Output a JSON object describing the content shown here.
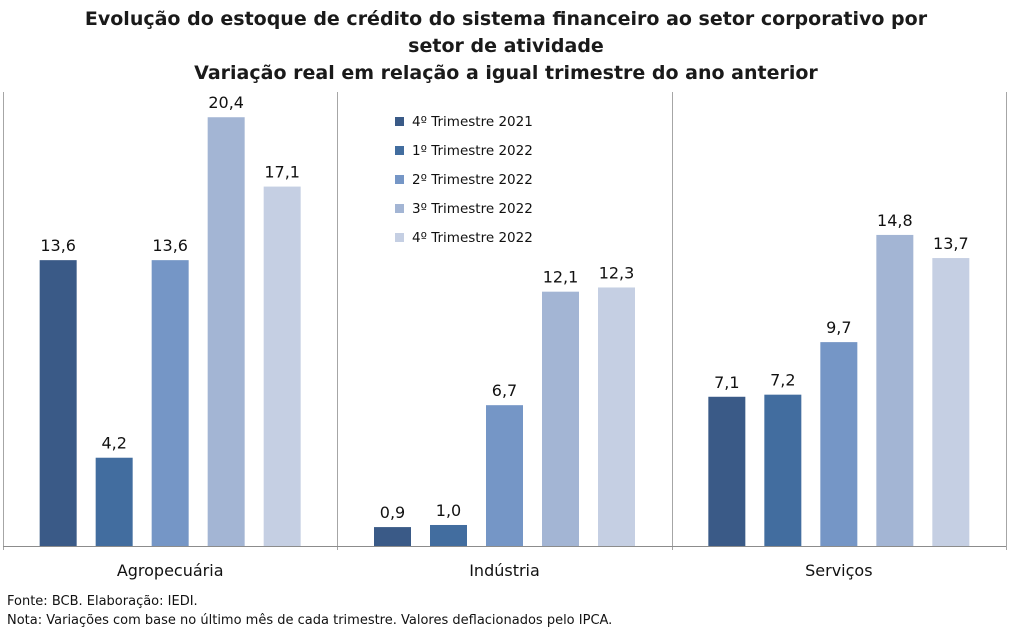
{
  "title_lines": [
    "Evolução do estoque de crédito do sistema financeiro ao setor corporativo por",
    "setor de atividade",
    "Variação real em relação a igual trimestre do ano anterior"
  ],
  "footer": {
    "source": "Fonte:  BCB. Elaboração: IEDI.",
    "note": "Nota: Variações com base no último mês de cada trimestre. Valores deflacionados pelo IPCA."
  },
  "chart_data": {
    "type": "bar",
    "title": "Evolução do estoque de crédito do sistema financeiro ao setor corporativo por setor de atividade",
    "subtitle": "Variação real em relação a igual trimestre do ano anterior",
    "categories": [
      "Agropecuária",
      "Indústria",
      "Serviços"
    ],
    "series": [
      {
        "name": "4º Trimestre 2021",
        "values": [
          13.6,
          0.9,
          7.1
        ],
        "labels": [
          "13,6",
          "0,9",
          "7,1"
        ],
        "color": "#3a5a87"
      },
      {
        "name": "1º Trimestre 2022",
        "values": [
          4.2,
          1.0,
          7.2
        ],
        "labels": [
          "4,2",
          "1,0",
          "7,2"
        ],
        "color": "#426d9f"
      },
      {
        "name": "2º Trimestre 2022",
        "values": [
          13.6,
          6.7,
          9.7
        ],
        "labels": [
          "13,6",
          "6,7",
          "9,7"
        ],
        "color": "#7596c6"
      },
      {
        "name": "3º Trimestre 2022",
        "values": [
          20.4,
          12.1,
          14.8
        ],
        "labels": [
          "20,4",
          "12,1",
          "14,8"
        ],
        "color": "#a3b5d4"
      },
      {
        "name": "4º Trimestre 2022",
        "values": [
          17.1,
          12.3,
          13.7
        ],
        "labels": [
          "17,1",
          "12,3",
          "13,7"
        ],
        "color": "#c5cfe3"
      }
    ],
    "ylim": [
      0,
      21.6
    ],
    "xlabel": "",
    "ylabel": "",
    "legend_position": "top-center",
    "grid": false
  }
}
